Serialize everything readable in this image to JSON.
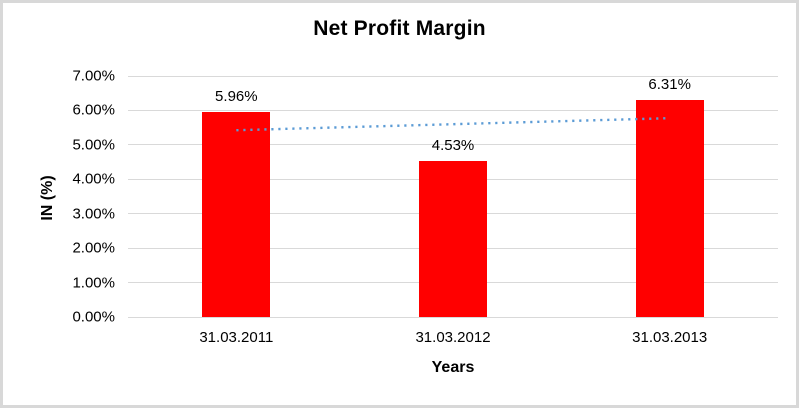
{
  "window": {
    "background": "#FFFFFF",
    "frame_border_color": "#D8D8D8"
  },
  "chart_data": {
    "type": "bar",
    "title": "Net Profit Margin",
    "xlabel": "Years",
    "ylabel": "IN (%)",
    "categories": [
      "31.03.2011",
      "31.03.2012",
      "31.03.2013"
    ],
    "values": [
      5.96,
      4.53,
      6.31
    ],
    "data_labels": [
      "5.96%",
      "4.53%",
      "6.31%"
    ],
    "bar_color": "#FF0000",
    "ylim": [
      0,
      7
    ],
    "y_tick_step": 1,
    "y_ticks": [
      "0.00%",
      "1.00%",
      "2.00%",
      "3.00%",
      "4.00%",
      "5.00%",
      "6.00%",
      "7.00%"
    ],
    "grid": true,
    "gridline_color": "#D9D9D9",
    "legend": "none",
    "trendline": {
      "type": "linear",
      "style": "dotted",
      "color": "#5B9BD5",
      "values": [
        5.425,
        5.775
      ]
    }
  }
}
